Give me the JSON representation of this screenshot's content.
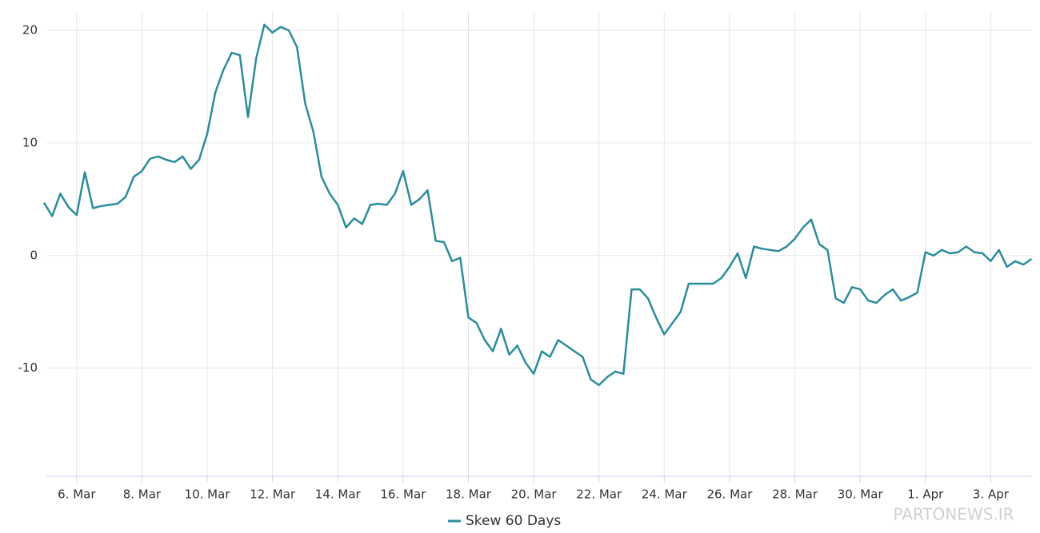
{
  "chart_data": {
    "type": "line",
    "categories": [
      null,
      null,
      null,
      null,
      "6. Mar",
      null,
      null,
      null,
      null,
      null,
      null,
      null,
      "8. Mar",
      null,
      null,
      null,
      null,
      null,
      null,
      null,
      "10. Mar",
      null,
      null,
      null,
      null,
      null,
      null,
      null,
      "12. Mar",
      null,
      null,
      null,
      null,
      null,
      null,
      null,
      "14. Mar",
      null,
      null,
      null,
      null,
      null,
      null,
      null,
      "16. Mar",
      null,
      null,
      null,
      null,
      null,
      null,
      null,
      "18. Mar",
      null,
      null,
      null,
      null,
      null,
      null,
      null,
      "20. Mar",
      null,
      null,
      null,
      null,
      null,
      null,
      null,
      "22. Mar",
      null,
      null,
      null,
      null,
      null,
      null,
      null,
      "24. Mar",
      null,
      null,
      null,
      null,
      null,
      null,
      null,
      "26. Mar",
      null,
      null,
      null,
      null,
      null,
      null,
      null,
      "28. Mar",
      null,
      null,
      null,
      null,
      null,
      null,
      null,
      "30. Mar",
      null,
      null,
      null,
      null,
      null,
      null,
      null,
      "1. Apr",
      null,
      null,
      null,
      null,
      null,
      null,
      null,
      "3. Apr",
      null,
      null,
      null,
      null,
      null
    ],
    "series": [
      {
        "name": "Skew 60 Days",
        "color": "#2a8d9c",
        "values": [
          4.7,
          3.5,
          5.5,
          4.3,
          3.6,
          7.4,
          4.2,
          4.4,
          4.5,
          4.6,
          5.2,
          7.0,
          7.5,
          8.6,
          8.8,
          8.5,
          8.3,
          8.8,
          7.7,
          8.5,
          10.8,
          14.5,
          16.5,
          18.0,
          17.8,
          12.3,
          17.5,
          20.5,
          19.8,
          20.3,
          20.0,
          18.5,
          13.5,
          11.0,
          7.0,
          5.5,
          4.5,
          2.5,
          3.3,
          2.8,
          4.5,
          4.6,
          4.5,
          5.5,
          7.5,
          4.5,
          5.0,
          5.8,
          1.3,
          1.2,
          -0.5,
          -0.2,
          -5.5,
          -6.0,
          -7.5,
          -8.5,
          -6.5,
          -8.8,
          -8.0,
          -9.5,
          -10.5,
          -8.5,
          -9.0,
          -7.5,
          -8.0,
          -8.5,
          -9.0,
          -11.0,
          -11.5,
          -10.8,
          -10.3,
          -10.5,
          -3.0,
          -3.0,
          -3.8,
          -5.5,
          -7.0,
          -6.0,
          -5.0,
          -2.5,
          -2.5,
          -2.5,
          -2.5,
          -2.0,
          -1.0,
          0.2,
          -2.0,
          0.8,
          0.6,
          0.5,
          0.4,
          0.8,
          1.5,
          2.5,
          3.2,
          1.0,
          0.5,
          -3.8,
          -4.2,
          -2.8,
          -3.0,
          -4.0,
          -4.2,
          -3.5,
          -3.0,
          -4.0,
          -3.7,
          -3.3,
          0.3,
          0.0,
          0.5,
          0.2,
          0.3,
          0.8,
          0.3,
          0.2,
          -0.5,
          0.5,
          -1.0,
          -0.5,
          -0.8,
          -0.3
        ]
      }
    ],
    "ylim": [
      -19.6,
      21.7
    ],
    "yticks": [
      -10,
      0,
      10,
      20
    ],
    "grid": true,
    "legend": "bottom",
    "watermark": "PARTONEWS.IR"
  }
}
